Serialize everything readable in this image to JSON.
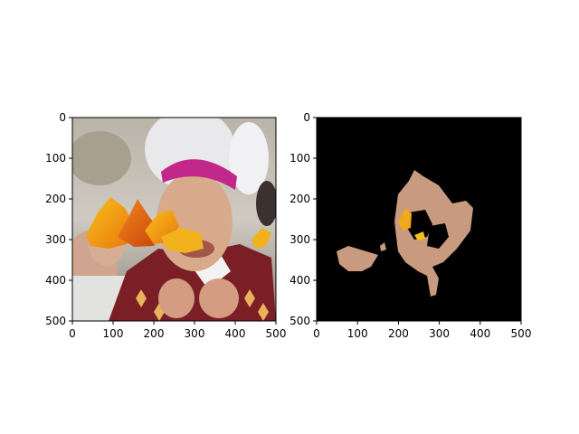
{
  "chart_data": [
    {
      "type": "image",
      "title": "",
      "xlabel": "",
      "ylabel": "",
      "xlim": [
        0,
        500
      ],
      "ylim": [
        500,
        0
      ],
      "xticks": [
        0,
        100,
        200,
        300,
        400,
        500
      ],
      "yticks": [
        0,
        100,
        200,
        300,
        400,
        500
      ],
      "content": "photo of a smiling man in a magenta skullcap and red vestments with autumn leaves overlaid across the face"
    },
    {
      "type": "image",
      "title": "",
      "xlabel": "",
      "ylabel": "",
      "xlim": [
        0,
        500
      ],
      "ylim": [
        500,
        0
      ],
      "xticks": [
        0,
        100,
        200,
        300,
        400,
        500
      ],
      "yticks": [
        0,
        100,
        200,
        300,
        400,
        500
      ],
      "content": "segmentation mask: black background with only skin regions of the face and hands visible"
    }
  ]
}
